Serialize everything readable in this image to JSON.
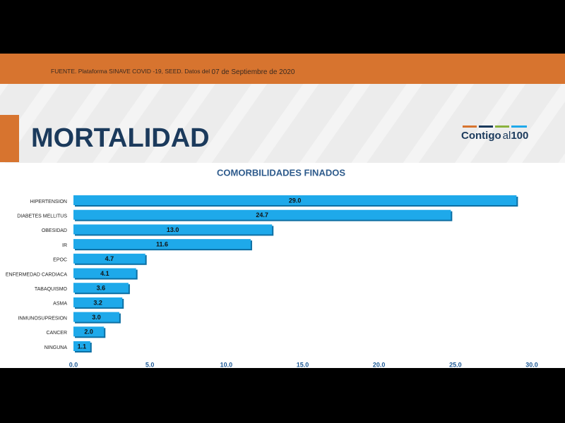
{
  "header": {
    "source": "FUENTE. Plataforma SINAVE COVID -19, SEED. Datos del",
    "date": "07 de Septiembre de 2020"
  },
  "section_title": "MORTALIDAD",
  "logo": {
    "main": "Contigo",
    "mid": "al",
    "num": "100"
  },
  "chart_data": {
    "type": "bar",
    "orientation": "horizontal",
    "title": "COMORBILIDADES FINADOS",
    "categories": [
      "HIPERTENSION",
      "DIABETES MELLITUS",
      "OBESIDAD",
      "IR",
      "EPOC",
      "ENFERMEDAD CARDIACA",
      "TABAQUISMO",
      "ASMA",
      "INMUNOSUPRESION",
      "CANCER",
      "NINGUNA"
    ],
    "values": [
      29.0,
      24.7,
      13.0,
      11.6,
      4.7,
      4.1,
      3.6,
      3.2,
      3.0,
      2.0,
      1.1
    ],
    "value_labels": [
      "29.0",
      "24.7",
      "13.0",
      "11.6",
      "4.7",
      "4.1",
      "3.6",
      "3.2",
      "3.0",
      "2.0",
      "1.1"
    ],
    "color": "#1ea9ea",
    "xlim": [
      0,
      30
    ],
    "xticks": [
      {
        "value": 0,
        "label": "0.0"
      },
      {
        "value": 5,
        "label": "5.0"
      },
      {
        "value": 10,
        "label": "10.0"
      },
      {
        "value": 15,
        "label": "15.0"
      },
      {
        "value": 20,
        "label": "20.0"
      },
      {
        "value": 25,
        "label": "25.0"
      },
      {
        "value": 30,
        "label": "30.0"
      }
    ],
    "grid": false
  }
}
